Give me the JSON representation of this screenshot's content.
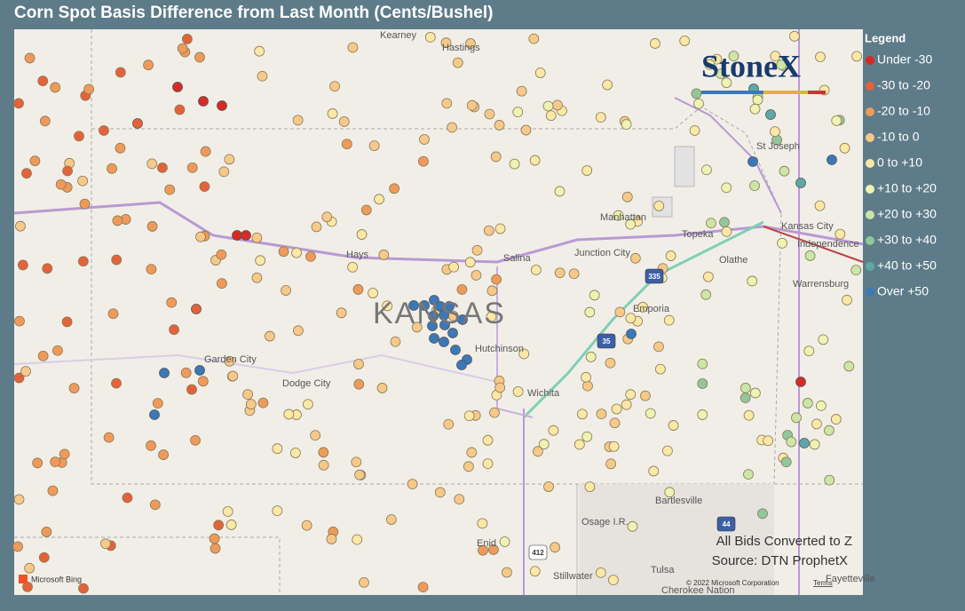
{
  "title": "Corn Spot Basis Difference from Last Month (Cents/Bushel)",
  "legend": {
    "title": "Legend",
    "items": [
      {
        "label": "Under -30",
        "color": "#d62a24"
      },
      {
        "label": "-30 to -20",
        "color": "#e4623a"
      },
      {
        "label": "-20 to -10",
        "color": "#ef9a5a"
      },
      {
        "label": "-10 to 0",
        "color": "#f6c98a"
      },
      {
        "label": "0 to +10",
        "color": "#fbe7a6"
      },
      {
        "label": "+10 to +20",
        "color": "#eef2b2"
      },
      {
        "label": "+20 to +30",
        "color": "#cbe6a6"
      },
      {
        "label": "+30 to +40",
        "color": "#91c79c"
      },
      {
        "label": "+40 to +50",
        "color": "#5ea7a8"
      },
      {
        "label": "Over +50",
        "color": "#3b78b8"
      }
    ]
  },
  "logo": "StoneX",
  "map_labels": [
    "Kearney",
    "Hastings",
    "St Joseph",
    "Manhattan",
    "Topeka",
    "Kansas City",
    "Independence",
    "Olathe",
    "Hays",
    "Salina",
    "Junction City",
    "Emporia",
    "Warrensburg",
    "KANSAS",
    "Garden City",
    "Dodge City",
    "Hutchinson",
    "Wichita",
    "Bartlesville",
    "Osage I.R.",
    "Enid",
    "Tulsa",
    "Cherokee Nation",
    "Stillwater",
    "Fayetteville"
  ],
  "road_shields": [
    "335",
    "35",
    "44",
    "412"
  ],
  "notes": [
    "All Bids Converted to Z",
    "Source: DTN ProphetX"
  ],
  "attribution": {
    "provider": "Microsoft Bing",
    "copyright": "© 2022 Microsoft Corporation",
    "terms": "Terms"
  }
}
